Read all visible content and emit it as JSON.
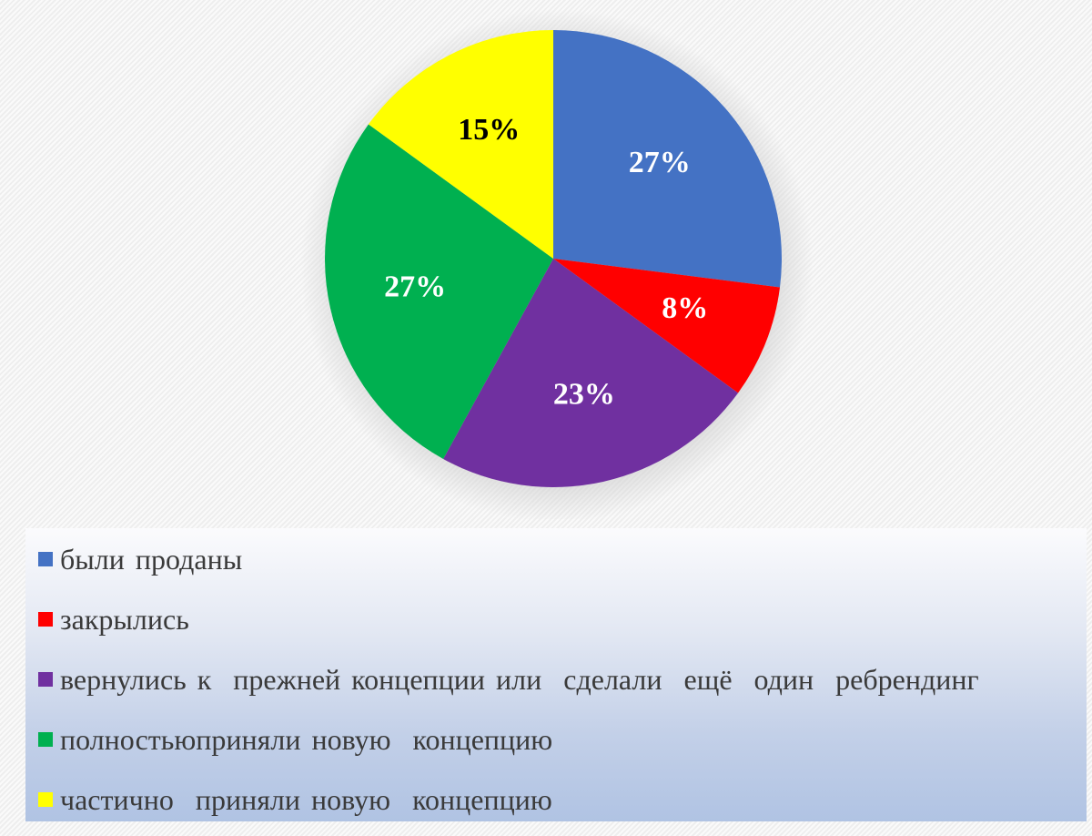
{
  "chart_data": {
    "type": "pie",
    "title": "",
    "slices": [
      {
        "label": "были проданы",
        "value": 27,
        "display": "27%",
        "color": "#4472C4",
        "label_color": "#ffffff"
      },
      {
        "label": "закрылись",
        "value": 8,
        "display": "8%",
        "color": "#FF0000",
        "label_color": "#ffffff"
      },
      {
        "label": "вернулись к  прежней концепции или  сделали  ещё  один  ребрендинг",
        "value": 23,
        "display": "23%",
        "color": "#7030A0",
        "label_color": "#ffffff"
      },
      {
        "label": "полностьюприняли новую  концепцию",
        "value": 27,
        "display": "27%",
        "color": "#00B050",
        "label_color": "#ffffff"
      },
      {
        "label": "частично  приняли новую  концепцию",
        "value": 15,
        "display": "15%",
        "color": "#FFFF00",
        "label_color": "#000000"
      }
    ],
    "legend_position": "bottom",
    "start_angle": "12 o'clock",
    "direction": "clockwise"
  }
}
